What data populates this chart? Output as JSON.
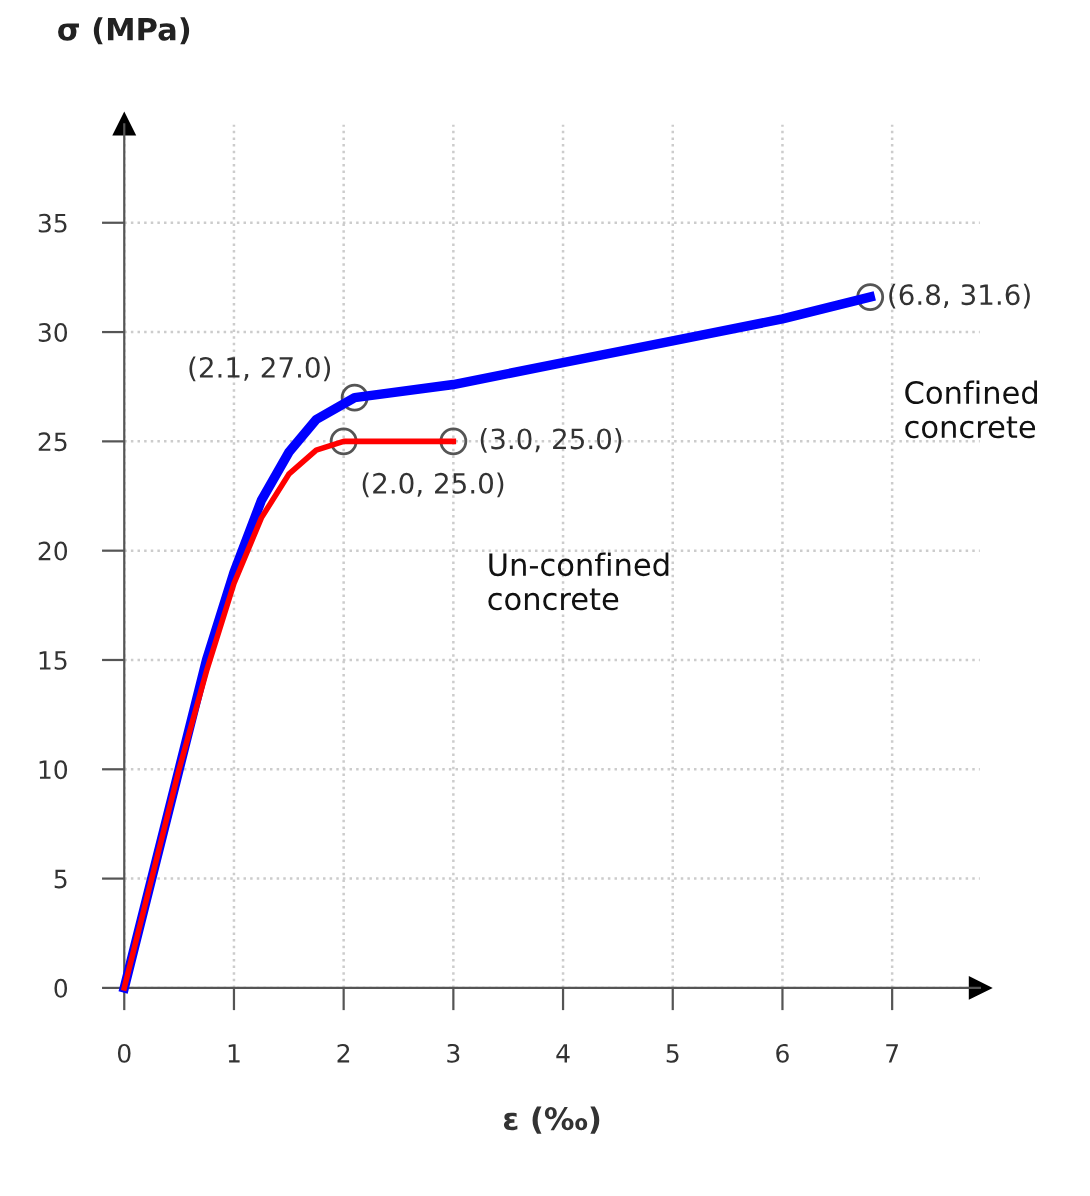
{
  "chart_data": {
    "type": "line",
    "xlabel": "ε (‰)",
    "ylabel": "σ (MPa)",
    "series": [
      {
        "name": "Confined\nconcrete",
        "color": "#0000ff",
        "x": [
          0,
          0.25,
          0.5,
          0.75,
          1,
          1.25,
          1.5,
          1.75,
          2.1,
          3,
          4,
          5,
          6,
          6.8
        ],
        "values": [
          0,
          5,
          10,
          15,
          19,
          22.3,
          24.5,
          26,
          27,
          27.6,
          28.6,
          29.6,
          30.6,
          31.6
        ]
      },
      {
        "name": "Un-confined\nconcrete",
        "color": "#ff0000",
        "x": [
          0,
          0.25,
          0.5,
          0.75,
          1,
          1.25,
          1.5,
          1.75,
          2,
          2.5,
          3
        ],
        "values": [
          0,
          5,
          10,
          14.5,
          18.5,
          21.5,
          23.5,
          24.6,
          25,
          25,
          25
        ]
      }
    ],
    "annotations": [
      {
        "text": "(2.1, 27.0)",
        "x": 2.1,
        "y": 27.0
      },
      {
        "text": "(2.0, 25.0)",
        "x": 2.0,
        "y": 25.0
      },
      {
        "text": "(3.0, 25.0)",
        "x": 3.0,
        "y": 25.0
      },
      {
        "text": "(6.8, 31.6)",
        "x": 6.8,
        "y": 31.6
      }
    ],
    "xlim": [
      0,
      7.8
    ],
    "ylim": [
      0,
      39.5
    ],
    "xticks": [
      0,
      1,
      2,
      3,
      4,
      5,
      6,
      7
    ],
    "yticks": [
      0,
      5,
      10,
      15,
      20,
      25,
      30,
      35
    ],
    "grid": true,
    "marker": "none",
    "line_style": "solid"
  }
}
